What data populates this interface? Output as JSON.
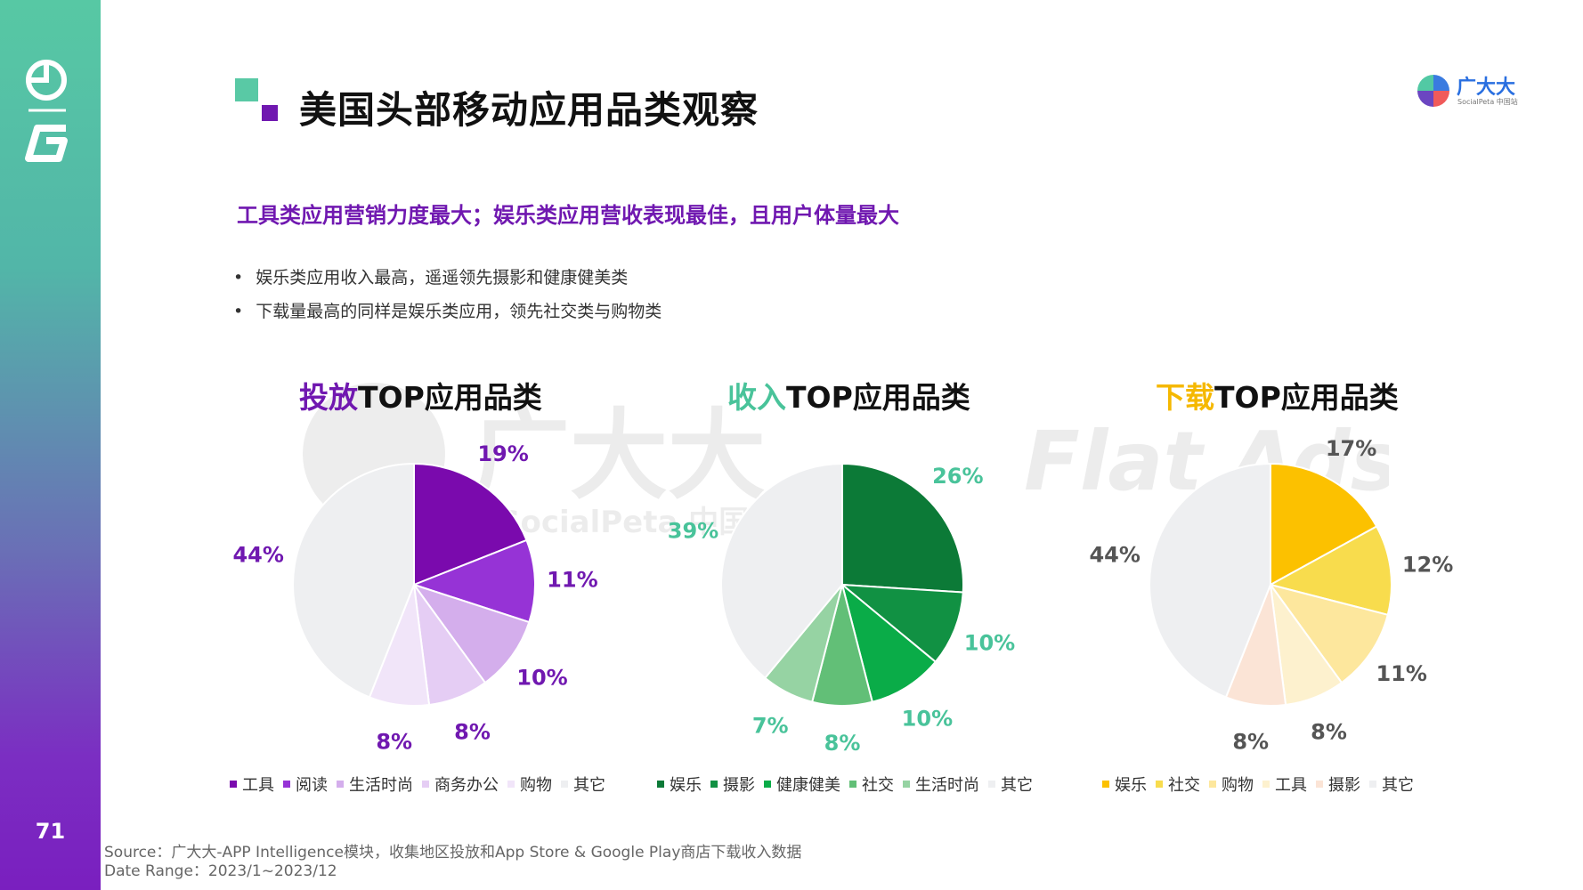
{
  "page": {
    "title": "美国头部移动应用品类观察",
    "subtitle": "工具类应用营销力度最大；娱乐类应用营收表现最佳，且用户体量最大",
    "bullets": [
      "娱乐类应用收入最高，遥遥领先摄影和健康健美类",
      "下载量最高的同样是娱乐类应用，领先社交类与购物类"
    ],
    "page_number": "71",
    "brand_name": "广大大",
    "brand_sub": "SocialPeta 中国站",
    "watermark_cn": "广大大",
    "watermark_sub": "SocialPeta 中国站",
    "watermark_flat": "Flat Ads",
    "source_line1": "Source：广大大-APP Intelligence模块，收集地区投放和App Store & Google Play商店下载收入数据",
    "source_line2": "Date Range：2023/1~2023/12"
  },
  "colors": {
    "purple": "#7018b0",
    "green": "#49c39a",
    "yellow": "#f5b800"
  },
  "chart_data": [
    {
      "type": "pie",
      "title_highlight": "投放",
      "title_rest": "TOP应用品类",
      "title_color": "#7018b0",
      "label_color": "#7018b0",
      "categories": [
        "工具",
        "阅读",
        "生活时尚",
        "商务办公",
        "购物",
        "其它"
      ],
      "values": [
        19,
        11,
        10,
        8,
        8,
        44
      ],
      "labels": [
        "19%",
        "11%",
        "10%",
        "8%",
        "8%",
        "44%"
      ],
      "colors": [
        "#7a0aad",
        "#9633d6",
        "#d4aeec",
        "#e5cdf4",
        "#f1e5f9",
        "#eeeff1"
      ]
    },
    {
      "type": "pie",
      "title_highlight": "收入",
      "title_rest": "TOP应用品类",
      "title_color": "#49c39a",
      "label_color": "#49c39a",
      "categories": [
        "娱乐",
        "摄影",
        "健康健美",
        "社交",
        "生活时尚",
        "其它"
      ],
      "values": [
        26,
        10,
        10,
        8,
        7,
        39
      ],
      "labels": [
        "26%",
        "10%",
        "10%",
        "8%",
        "7%",
        "39%"
      ],
      "colors": [
        "#0c7a37",
        "#119143",
        "#0aac48",
        "#62bf77",
        "#96d3a3",
        "#eeeff1"
      ]
    },
    {
      "type": "pie",
      "title_highlight": "下载",
      "title_rest": "TOP应用品类",
      "title_color": "#f5b800",
      "label_color": "#555555",
      "categories": [
        "娱乐",
        "社交",
        "购物",
        "工具",
        "摄影",
        "其它"
      ],
      "values": [
        17,
        12,
        11,
        8,
        8,
        44
      ],
      "labels": [
        "17%",
        "12%",
        "11%",
        "8%",
        "8%",
        "44%"
      ],
      "colors": [
        "#fcc100",
        "#f8dc4d",
        "#fde79d",
        "#fdf1ce",
        "#fbe4d6",
        "#eeeff1"
      ]
    }
  ]
}
